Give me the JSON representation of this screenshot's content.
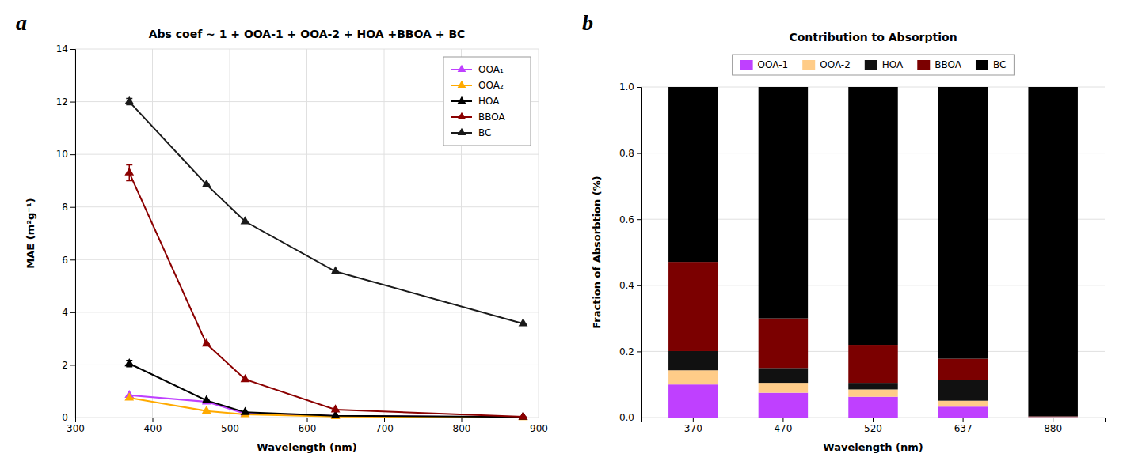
{
  "chart_data": [
    {
      "type": "line",
      "title": "Abs coef ~ 1 + OOA-1 + OOA-2 + HOA +BBOA + BC",
      "xlabel": "Wavelength (nm)",
      "ylabel": "MAE (m²g⁻¹)",
      "annotations": [
        "a"
      ],
      "x": [
        370,
        470,
        520,
        637,
        880
      ],
      "series": [
        {
          "name": "OOA₁",
          "color": "#bf40ff",
          "values": [
            0.85,
            0.6,
            0.15,
            0.06,
            0.01
          ],
          "errors": [
            0.0,
            0.0,
            0.0,
            0.0,
            0.0
          ]
        },
        {
          "name": "OOA₂",
          "color": "#ffaa00",
          "values": [
            0.75,
            0.25,
            0.12,
            0.04,
            0.005
          ],
          "errors": [
            0.0,
            0.0,
            0.0,
            0.0,
            0.0
          ]
        },
        {
          "name": "HOA",
          "color": "#000000",
          "values": [
            2.05,
            0.65,
            0.2,
            0.07,
            0.02
          ],
          "errors": [
            0.12,
            0.0,
            0.0,
            0.0,
            0.0
          ]
        },
        {
          "name": "BBOA",
          "color": "#8b0000",
          "values": [
            9.3,
            2.8,
            1.45,
            0.3,
            0.03
          ],
          "errors": [
            0.3,
            0.0,
            0.0,
            0.0,
            0.0
          ]
        },
        {
          "name": "BC",
          "color": "#1a1a1a",
          "values": [
            12.0,
            8.85,
            7.45,
            5.55,
            3.57
          ],
          "errors": [
            0.12,
            0.0,
            0.0,
            0.0,
            0.0
          ]
        }
      ],
      "marker": "triangle",
      "xlim": [
        300,
        900
      ],
      "xticks": [
        300,
        400,
        500,
        600,
        700,
        800,
        900
      ],
      "ylim": [
        0,
        14
      ],
      "yticks": [
        0,
        2,
        4,
        6,
        8,
        10,
        12,
        14
      ],
      "grid": true,
      "legend": "upper right"
    },
    {
      "type": "bar",
      "stacked": true,
      "title": "Contribution to Absorption",
      "xlabel": "Wavelength (nm)",
      "ylabel": "Fraction of Absorbtion (%)",
      "annotations": [
        "b"
      ],
      "categories": [
        "370",
        "470",
        "520",
        "637",
        "880"
      ],
      "series": [
        {
          "name": "OOA-1",
          "color": "#bf40ff",
          "values": [
            0.1,
            0.075,
            0.063,
            0.033,
            0.001
          ]
        },
        {
          "name": "OOA-2",
          "color": "#ffcc88",
          "values": [
            0.043,
            0.03,
            0.022,
            0.018,
            0.001
          ]
        },
        {
          "name": "HOA",
          "color": "#111111",
          "values": [
            0.058,
            0.045,
            0.02,
            0.062,
            0.001
          ]
        },
        {
          "name": "BBOA",
          "color": "#7b0000",
          "values": [
            0.27,
            0.15,
            0.115,
            0.065,
            0.001
          ]
        },
        {
          "name": "BC",
          "color": "#000000",
          "values": [
            0.529,
            0.7,
            0.78,
            0.822,
            0.996
          ]
        }
      ],
      "ylim": [
        0,
        1.0
      ],
      "yticks": [
        {
          "value": 0,
          "label": "0.0"
        },
        0.2,
        0.4,
        0.6,
        0.8,
        {
          "value": 1.0,
          "label": "1.0"
        }
      ],
      "grid": "y",
      "legend": "top"
    }
  ]
}
